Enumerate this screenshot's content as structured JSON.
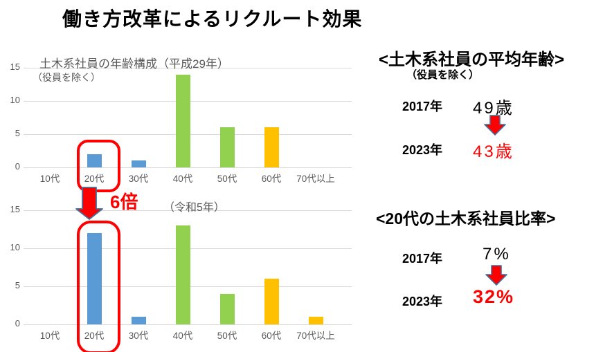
{
  "slide_title": "働き方改革によるリクルート効果",
  "annotation": {
    "multiplier_label": "6倍"
  },
  "colors": {
    "bar_blue": "#5B9BD5",
    "bar_green": "#92D050",
    "bar_orange": "#FFC000",
    "accent_red": "#FF0000",
    "arrow_outline": "#41719C",
    "gridline": "#D9D9D9",
    "axis_text": "#595959"
  },
  "chart_data": [
    {
      "type": "bar",
      "title": "土木系社員の年齢構成（平成29年）",
      "subtitle": "（役員を除く）",
      "categories": [
        "10代",
        "20代",
        "30代",
        "40代",
        "50代",
        "60代",
        "70代以上"
      ],
      "values": [
        0,
        2,
        1,
        14,
        6,
        6,
        0
      ],
      "bar_colors": [
        "#5B9BD5",
        "#5B9BD5",
        "#5B9BD5",
        "#92D050",
        "#92D050",
        "#FFC000",
        "#FFC000"
      ],
      "ylim": [
        0,
        15
      ],
      "yticks": [
        0,
        5,
        10,
        15
      ],
      "grid": true,
      "legend": "none",
      "highlight": "20代"
    },
    {
      "type": "bar",
      "title": "（令和5年）",
      "subtitle": "",
      "categories": [
        "10代",
        "20代",
        "30代",
        "40代",
        "50代",
        "60代",
        "70代以上"
      ],
      "values": [
        0,
        12,
        1,
        13,
        4,
        6,
        1
      ],
      "bar_colors": [
        "#5B9BD5",
        "#5B9BD5",
        "#5B9BD5",
        "#92D050",
        "#92D050",
        "#FFC000",
        "#FFC000"
      ],
      "ylim": [
        0,
        15
      ],
      "yticks": [
        0,
        5,
        10,
        15
      ],
      "grid": true,
      "legend": "none",
      "highlight": "20代"
    }
  ],
  "right_panel": {
    "average_age": {
      "title": "<土木系社員の平均年齢>",
      "subtitle": "（役員を除く）",
      "rows": [
        {
          "year": "2017年",
          "value": "49歳"
        },
        {
          "year": "2023年",
          "value": "43歳"
        }
      ]
    },
    "ratio_20s": {
      "title": "<20代の土木系社員比率>",
      "rows": [
        {
          "year": "2017年",
          "value": "7%"
        },
        {
          "year": "2023年",
          "value": "32%"
        }
      ]
    }
  }
}
